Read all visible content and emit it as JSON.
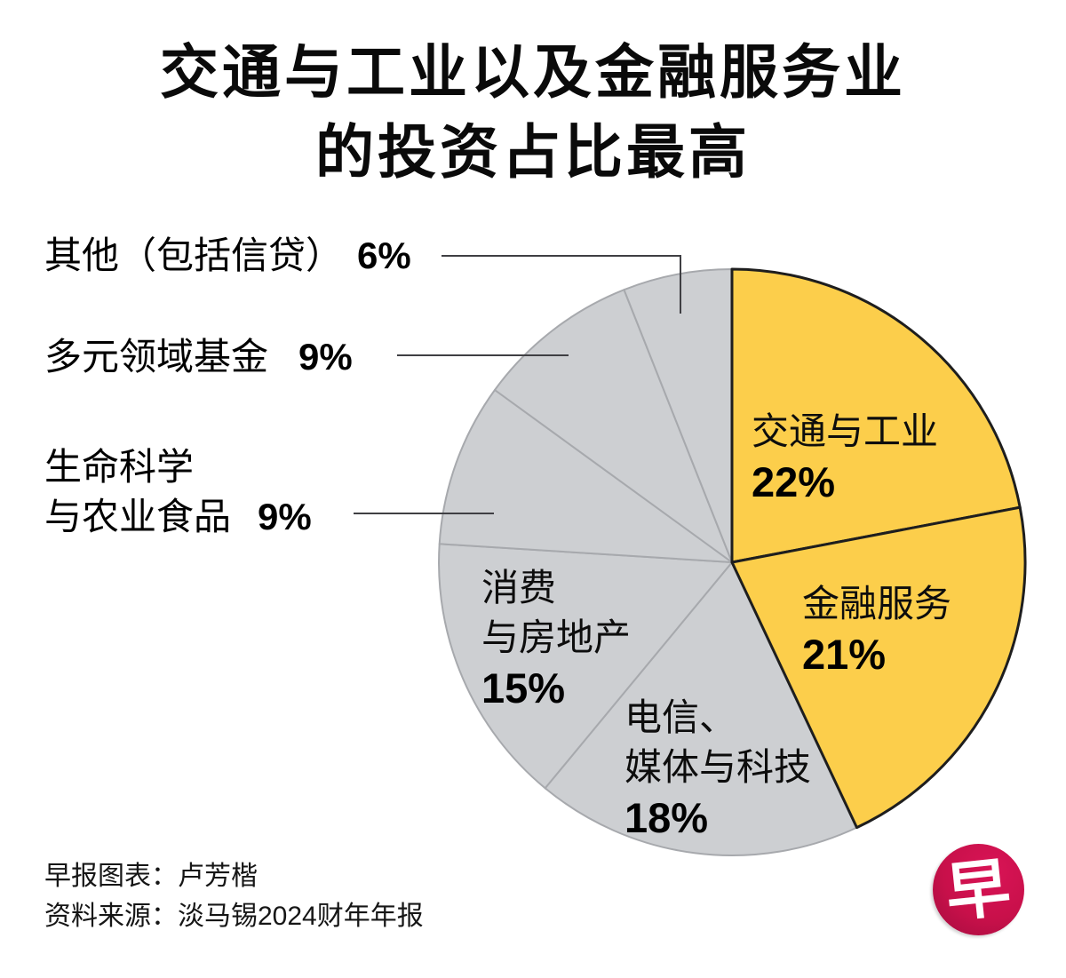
{
  "title": {
    "line1": "交通与工业以及金融服务业",
    "line2": "的投资占比最高"
  },
  "chart_data": {
    "type": "pie",
    "title": "交通与工业以及金融服务业的投资占比最高",
    "unit": "percent",
    "start_angle": "12-oclock",
    "direction": "clockwise",
    "total": 100,
    "slices": [
      {
        "label": "交通与工业",
        "pct": 22,
        "pct_text": "22%",
        "color": "#FCCE4B",
        "label_lines": [
          "交通与工业"
        ],
        "placement": "inside"
      },
      {
        "label": "金融服务",
        "pct": 21,
        "pct_text": "21%",
        "color": "#FCCE4B",
        "label_lines": [
          "金融服务"
        ],
        "placement": "inside"
      },
      {
        "label": "电信、媒体与科技",
        "pct": 18,
        "pct_text": "18%",
        "color": "#CDCFD2",
        "label_lines": [
          "电信、",
          "媒体与科技"
        ],
        "placement": "inside"
      },
      {
        "label": "消费与房地产",
        "pct": 15,
        "pct_text": "15%",
        "color": "#CDCFD2",
        "label_lines": [
          "消费",
          "与房地产"
        ],
        "placement": "inside"
      },
      {
        "label": "生命科学与农业食品",
        "pct": 9,
        "pct_text": "9%",
        "color": "#CDCFD2",
        "label_lines": [
          "生命科学",
          "与农业食品"
        ],
        "placement": "outside-left"
      },
      {
        "label": "多元领域基金",
        "pct": 9,
        "pct_text": "9%",
        "color": "#CDCFD2",
        "label_lines": [
          "多元领域基金"
        ],
        "placement": "outside-left"
      },
      {
        "label": "其他（包括信贷）",
        "pct": 6,
        "pct_text": "6%",
        "color": "#CDCFD2",
        "label_lines": [
          "其他（包括信贷）"
        ],
        "placement": "outside-left"
      }
    ],
    "colors": {
      "highlight": "#FCCE4B",
      "muted": "#CDCFD2",
      "highlight_stroke": "#1E1E1E",
      "muted_stroke": "#A7A9AD",
      "leader_line": "#3F3F43"
    },
    "legend_position": "labels-on-chart",
    "grid": false
  },
  "footer": {
    "credit": "早报图表：卢芳楷",
    "source": "资料来源：淡马锡2024财年年报"
  },
  "logo": {
    "glyph": "早",
    "bg_color": "#C8104A"
  }
}
